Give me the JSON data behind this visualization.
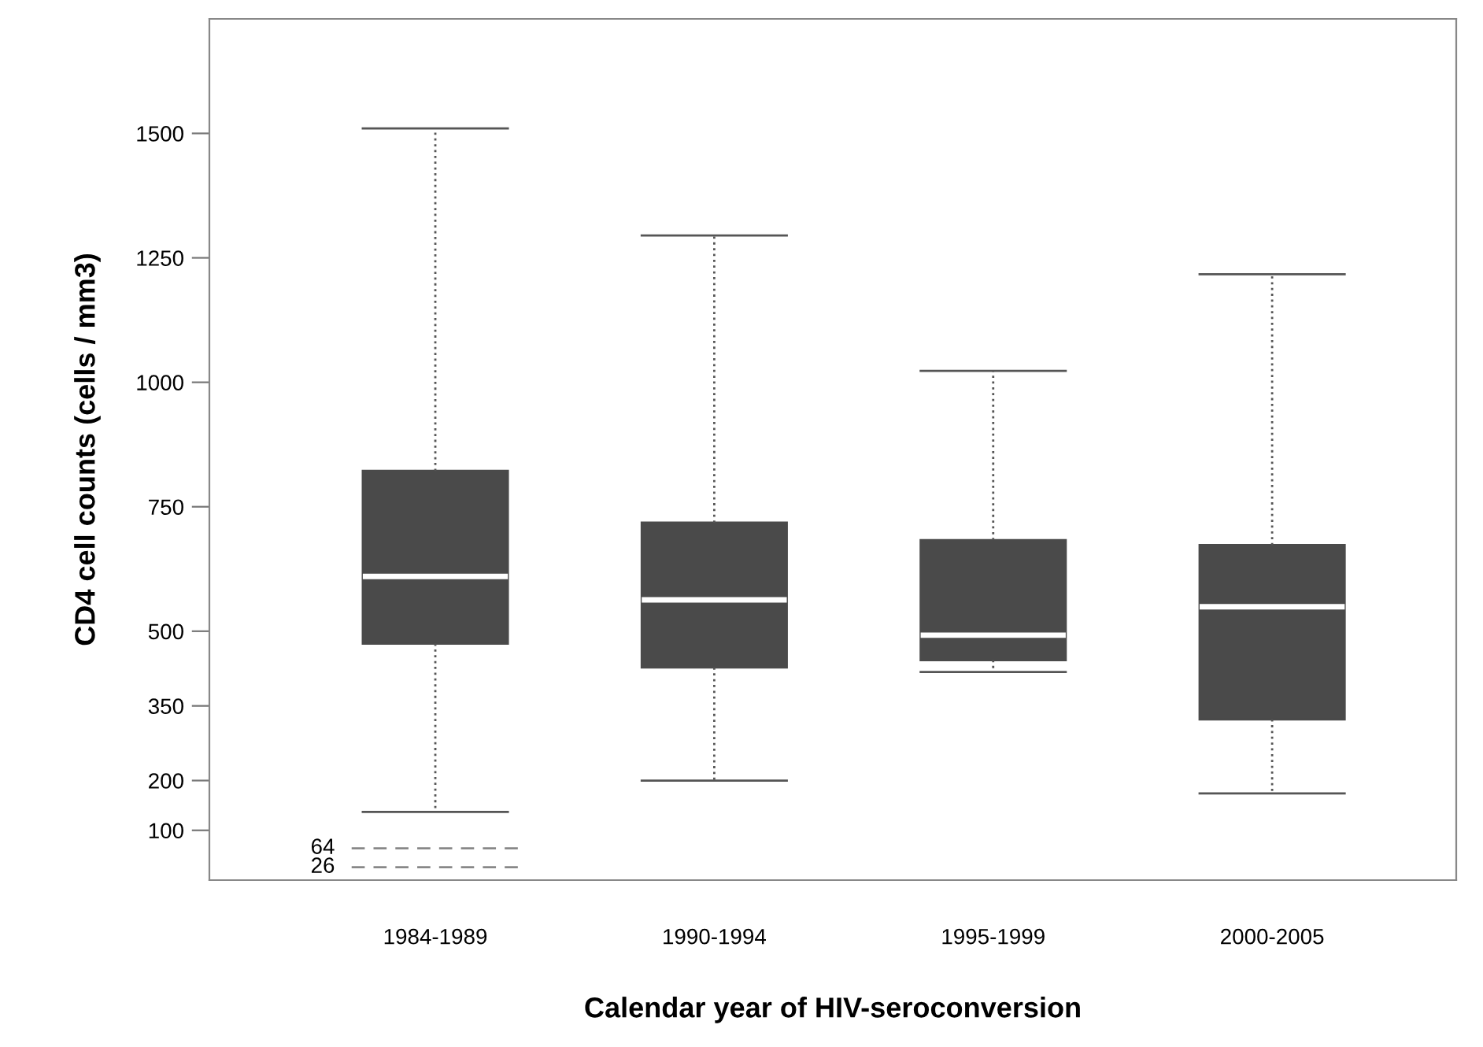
{
  "chart_data": {
    "type": "box",
    "xlabel": "Calendar year of HIV-seroconversion",
    "ylabel": "CD4 cell counts (cells / mm3)",
    "categories": [
      "1984-1989",
      "1990-1994",
      "1995-1999",
      "2000-2005"
    ],
    "color": "#4a4a4a",
    "boxes": [
      {
        "low": 137,
        "q1": 475,
        "median": 610,
        "q3": 822,
        "high": 1510
      },
      {
        "low": 200,
        "q1": 427,
        "median": 563,
        "q3": 718,
        "high": 1295
      },
      {
        "low": 418,
        "q1": 442,
        "median": 492,
        "q3": 683,
        "high": 1023
      },
      {
        "low": 174,
        "q1": 323,
        "median": 549,
        "q3": 673,
        "high": 1217
      }
    ],
    "ref_lines": [
      {
        "axis": "y",
        "value": 64,
        "label": "64",
        "color": "#888888",
        "line_style": "dashed"
      },
      {
        "axis": "y",
        "value": 26,
        "label": "26",
        "color": "#888888",
        "line_style": "dashed"
      }
    ],
    "ylim": [
      0,
      1730
    ],
    "yticks": [
      100,
      200,
      350,
      500,
      750,
      1000,
      1250,
      1500
    ],
    "grid": false
  }
}
